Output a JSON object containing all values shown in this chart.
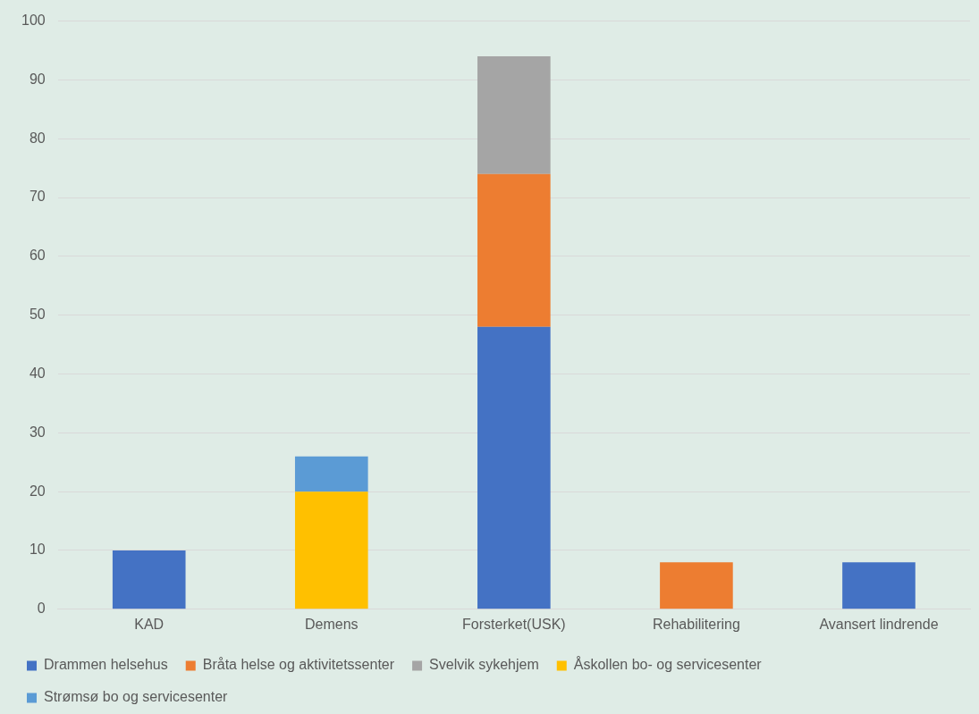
{
  "chart_data": {
    "type": "bar",
    "stacked": true,
    "categories": [
      "KAD",
      "Demens",
      "Forsterket(USK)",
      "Rehabilitering",
      "Avansert lindrende"
    ],
    "series": [
      {
        "name": "Drammen helsehus",
        "color": "#4472c4",
        "values": [
          10,
          null,
          48,
          null,
          8
        ]
      },
      {
        "name": "Bråta helse og aktivitetssenter",
        "color": "#ed7d31",
        "values": [
          null,
          null,
          26,
          8,
          null
        ]
      },
      {
        "name": "Svelvik sykehjem",
        "color": "#a5a5a5",
        "values": [
          null,
          null,
          20,
          null,
          null
        ]
      },
      {
        "name": "Åskollen bo- og servicesenter",
        "color": "#ffc000",
        "values": [
          null,
          20,
          null,
          null,
          null
        ]
      },
      {
        "name": "Strømsø bo og servicesenter",
        "color": "#5b9bd5",
        "values": [
          null,
          6,
          null,
          null,
          null
        ]
      }
    ],
    "ylim": [
      0,
      100
    ],
    "yticks": [
      0,
      10,
      20,
      30,
      40,
      50,
      60,
      70,
      80,
      90,
      100
    ],
    "grid": "y",
    "legend": "bottom"
  }
}
